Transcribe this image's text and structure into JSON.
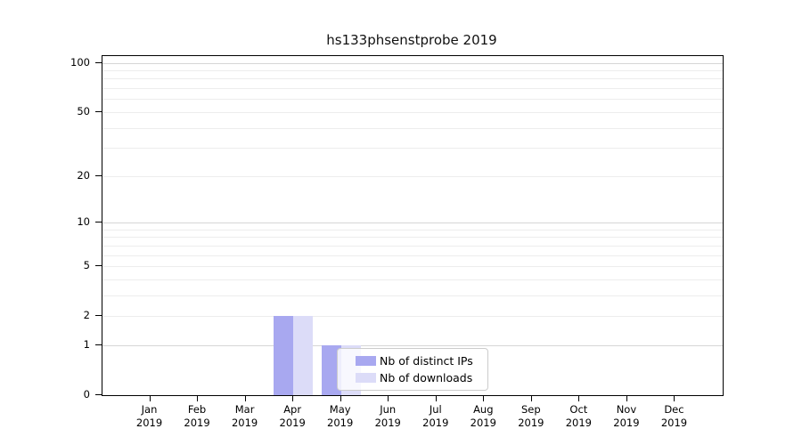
{
  "chart_data": {
    "type": "bar",
    "title": "hs133phsenstprobe 2019",
    "x_months": [
      "Jan",
      "Feb",
      "Mar",
      "Apr",
      "May",
      "Jun",
      "Jul",
      "Aug",
      "Sep",
      "Oct",
      "Nov",
      "Dec"
    ],
    "x_year": "2019",
    "series": [
      {
        "name": "Nb of distinct IPs",
        "color": "#a8a8f0",
        "values": [
          0,
          0,
          0,
          2,
          1,
          0,
          0,
          0,
          0,
          0,
          0,
          0
        ]
      },
      {
        "name": "Nb of downloads",
        "color": "#dcdcf8",
        "values": [
          0,
          0,
          0,
          2,
          1,
          0,
          0,
          0,
          0,
          0,
          0,
          0
        ]
      }
    ],
    "yscale": "log1p",
    "ylim": [
      0,
      110
    ],
    "ytick_labels": [
      0,
      1,
      2,
      5,
      10,
      20,
      50,
      100
    ],
    "grid_major_values": [
      1,
      10,
      100
    ],
    "grid_minor_values": [
      2,
      3,
      4,
      5,
      6,
      7,
      8,
      9,
      20,
      30,
      40,
      50,
      60,
      70,
      80,
      90
    ],
    "grid": true,
    "legend_position": "lower center",
    "colors": {
      "distinct_ips": "#a8a8f0",
      "downloads": "#dcdcf8",
      "grid_major": "#d6d6d6",
      "grid_minor": "#ededed",
      "spine": "#000000",
      "legend_border": "#cccccc",
      "background": "#ffffff"
    }
  }
}
